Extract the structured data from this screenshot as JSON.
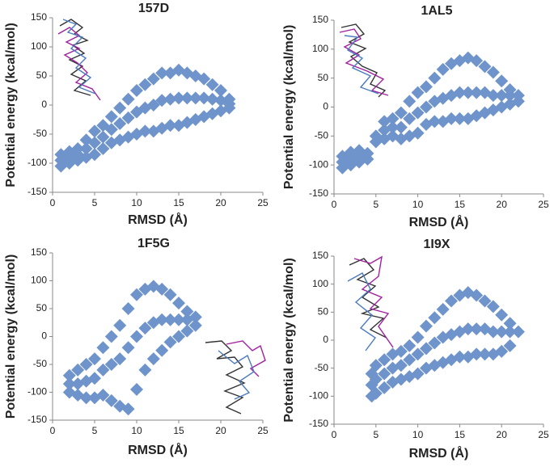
{
  "chart_data": [
    {
      "type": "scatter",
      "title": "157D",
      "xlabel": "RMSD (Å)",
      "ylabel": "Potential energy (kcal/mol)",
      "color": "#6f94cc",
      "xlim": [
        0,
        25
      ],
      "ylim": [
        -150,
        150
      ],
      "xticks": [
        0,
        5,
        10,
        15,
        20,
        25
      ],
      "yticks": [
        -150,
        -100,
        -50,
        0,
        50,
        100,
        150
      ],
      "x": [
        1,
        1,
        1,
        2,
        2,
        2,
        3,
        3,
        3,
        4,
        4,
        4,
        5,
        5,
        5,
        6,
        6,
        6,
        7,
        7,
        7,
        8,
        8,
        8,
        9,
        9,
        9,
        10,
        10,
        10,
        11,
        11,
        11,
        12,
        12,
        12,
        13,
        13,
        13,
        14,
        14,
        14,
        15,
        15,
        15,
        16,
        16,
        16,
        17,
        17,
        17,
        18,
        18,
        18,
        19,
        19,
        19,
        20,
        20,
        20,
        21,
        21,
        21
      ],
      "y": [
        -105,
        -95,
        -85,
        -100,
        -90,
        -80,
        -95,
        -85,
        -75,
        -90,
        -75,
        -60,
        -85,
        -65,
        -45,
        -75,
        -55,
        -35,
        -65,
        -42,
        -20,
        -60,
        -32,
        -5,
        -55,
        -22,
        10,
        -50,
        -12,
        25,
        -45,
        -5,
        35,
        -45,
        0,
        45,
        -40,
        8,
        55,
        -35,
        10,
        55,
        -35,
        12,
        60,
        -30,
        12,
        55,
        -25,
        12,
        50,
        -20,
        12,
        45,
        -15,
        10,
        35,
        -10,
        8,
        25,
        -5,
        2,
        10
      ]
    },
    {
      "type": "scatter",
      "title": "1AL5",
      "xlabel": "RMSD (Å)",
      "ylabel": "Potential energy (kcal/mol)",
      "color": "#6f94cc",
      "xlim": [
        0,
        25
      ],
      "ylim": [
        -150,
        150
      ],
      "xticks": [
        0,
        5,
        10,
        15,
        20,
        25
      ],
      "yticks": [
        -150,
        -100,
        -50,
        0,
        50,
        100,
        150
      ],
      "x": [
        1,
        1,
        1,
        2,
        2,
        2,
        3,
        3,
        3,
        4,
        4,
        5,
        5,
        6,
        6,
        6,
        7,
        7,
        7,
        8,
        8,
        8,
        9,
        9,
        9,
        10,
        10,
        10,
        11,
        11,
        11,
        12,
        12,
        12,
        13,
        13,
        13,
        14,
        14,
        14,
        15,
        15,
        15,
        16,
        16,
        16,
        17,
        17,
        17,
        18,
        18,
        18,
        19,
        19,
        19,
        20,
        20,
        20,
        21,
        21,
        21,
        22,
        22
      ],
      "y": [
        -105,
        -95,
        -85,
        -100,
        -90,
        -78,
        -95,
        -85,
        -75,
        -90,
        -80,
        -60,
        -50,
        -55,
        -40,
        -25,
        -50,
        -35,
        -20,
        -55,
        -35,
        -10,
        -50,
        -20,
        10,
        -45,
        -10,
        25,
        -30,
        0,
        35,
        -25,
        10,
        50,
        -25,
        15,
        65,
        -20,
        20,
        75,
        -20,
        25,
        80,
        -20,
        25,
        85,
        -15,
        25,
        80,
        -10,
        25,
        70,
        -5,
        20,
        60,
        0,
        20,
        45,
        5,
        20,
        30,
        10,
        20
      ]
    },
    {
      "type": "scatter",
      "title": "1F5G",
      "xlabel": "RMSD (Å)",
      "ylabel": "Potential energy (kcal/mol)",
      "color": "#6f94cc",
      "xlim": [
        0,
        25
      ],
      "ylim": [
        -150,
        150
      ],
      "xticks": [
        0,
        5,
        10,
        15,
        20,
        25
      ],
      "yticks": [
        -150,
        -100,
        -50,
        0,
        50,
        100,
        150
      ],
      "x": [
        2,
        2,
        2,
        3,
        3,
        3,
        4,
        4,
        4,
        5,
        5,
        5,
        6,
        6,
        6,
        7,
        7,
        7,
        8,
        8,
        8,
        9,
        9,
        9,
        10,
        10,
        10,
        11,
        11,
        11,
        12,
        12,
        12,
        13,
        13,
        13,
        14,
        14,
        14,
        15,
        15,
        15,
        16,
        16,
        16,
        17,
        17
      ],
      "y": [
        -100,
        -85,
        -70,
        -105,
        -85,
        -60,
        -110,
        -80,
        -50,
        -110,
        -75,
        -40,
        -105,
        -60,
        -20,
        -115,
        -50,
        0,
        -125,
        -40,
        20,
        -130,
        -20,
        50,
        -95,
        0,
        75,
        -60,
        15,
        85,
        -40,
        25,
        90,
        -25,
        30,
        85,
        -10,
        30,
        75,
        0,
        30,
        60,
        10,
        30,
        45,
        20,
        35
      ]
    },
    {
      "type": "scatter",
      "title": "1I9X",
      "xlabel": "RMSD (Å)",
      "ylabel": "Potential energy (kcal/mol)",
      "color": "#6f94cc",
      "xlim": [
        0,
        25
      ],
      "ylim": [
        -150,
        150
      ],
      "xticks": [
        0,
        5,
        10,
        15,
        20,
        25
      ],
      "yticks": [
        -150,
        -100,
        -50,
        0,
        50,
        100,
        150
      ],
      "x": [
        4.5,
        4.5,
        4.5,
        5,
        5,
        5,
        6,
        6,
        6,
        7,
        7,
        7,
        8,
        8,
        8,
        9,
        9,
        9,
        10,
        10,
        10,
        11,
        11,
        11,
        12,
        12,
        12,
        13,
        13,
        13,
        14,
        14,
        14,
        15,
        15,
        15,
        16,
        16,
        16,
        17,
        17,
        17,
        18,
        18,
        18,
        19,
        19,
        19,
        20,
        20,
        20,
        21,
        21,
        21,
        22
      ],
      "y": [
        -100,
        -80,
        -60,
        -95,
        -70,
        -45,
        -85,
        -60,
        -35,
        -75,
        -50,
        -25,
        -70,
        -45,
        -20,
        -65,
        -35,
        -10,
        -60,
        -25,
        5,
        -50,
        -15,
        25,
        -45,
        -5,
        40,
        -40,
        5,
        55,
        -35,
        10,
        70,
        -30,
        15,
        80,
        -30,
        20,
        85,
        -25,
        20,
        80,
        -25,
        20,
        70,
        -25,
        15,
        60,
        -20,
        15,
        45,
        -10,
        15,
        30,
        15
      ]
    }
  ]
}
